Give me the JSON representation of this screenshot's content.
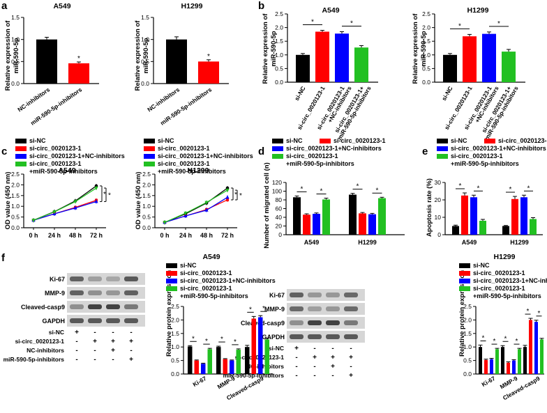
{
  "colors": {
    "black": "#000000",
    "red": "#ff0000",
    "blue": "#0000ff",
    "green": "#22c022",
    "band": "#3a3a3a",
    "bandbg": "#d6d6d6",
    "axis": "#000000"
  },
  "panels": {
    "a": {
      "letter": "a",
      "ylabel": [
        "Relative expression of",
        "miR-590-5p"
      ]
    },
    "b": {
      "letter": "b",
      "ylabel": [
        "Relative expression of",
        "miR-590-5p"
      ]
    },
    "c": {
      "letter": "c",
      "ylabel": "OD value (450 nm)",
      "legend": [
        "si-NC",
        "si-circ_0020123-1",
        "si-circ_0020123-1+NC-inhibitors",
        "si-circ_0020123-1",
        "+miR-590-5p-inhibitors"
      ]
    },
    "d": {
      "letter": "d",
      "ylabel": "Number of migrated cell (n)",
      "legend": [
        "si-NC",
        "si-circ_0020123-1",
        "si-circ_0020123-1+NC-inhibitors",
        "si-circ_0020123-1",
        "+miR-590-5p-inhibitors"
      ]
    },
    "e": {
      "letter": "e",
      "ylabel": "Apoptosis rate (%)",
      "legend": [
        "si-NC",
        "si-circ_0020123-1",
        "si-circ_0020123-1+NC-inhibitors",
        "si-circ_0020123-1",
        "+miR-590-5p-inhibitors"
      ]
    },
    "f": {
      "letter": "f",
      "ylabel": "Relative protein expression",
      "legend": [
        "si-NC",
        "si-circ_0020123-1",
        "si-circ_0020123-1+NC-inhibitors",
        "si-circ_0020123-1",
        "+miR-590-5p-inhibitors"
      ]
    }
  },
  "star": "*",
  "chart_data": [
    {
      "id": "a1",
      "type": "bar",
      "title": "A549",
      "categories": [
        "NC-inhibitors",
        "miR-590-5p-inhibitors"
      ],
      "values": [
        1.0,
        0.46
      ],
      "errors": [
        0.05,
        0.03
      ],
      "ylim": [
        0,
        1.5
      ],
      "yticks": [
        "0.0",
        "0.5",
        "1.0",
        "1.5"
      ],
      "ylabel": "Relative expression of miR-590-5p",
      "sig": [
        "*"
      ]
    },
    {
      "id": "a2",
      "type": "bar",
      "title": "H1299",
      "categories": [
        "NC-inhibitors",
        "miR-590-5p-inhibitors"
      ],
      "values": [
        1.0,
        0.5
      ],
      "errors": [
        0.06,
        0.04
      ],
      "ylim": [
        0,
        1.5
      ],
      "yticks": [
        "0.0",
        "0.5",
        "1.0",
        "1.5"
      ],
      "ylabel": "Relative expression of miR-590-5p",
      "sig": [
        "*"
      ]
    },
    {
      "id": "b1",
      "type": "bar",
      "title": "A549",
      "categories": [
        "si-NC",
        "si-circ_0020123-1",
        "si-circ_0020123-1 +NC-inhibitors",
        "si-circ_0020123-1+ miR-590-5p-inhibitors"
      ],
      "values": [
        1.0,
        1.85,
        1.78,
        1.27
      ],
      "errors": [
        0.05,
        0.05,
        0.07,
        0.07
      ],
      "ylim": [
        0,
        2.5
      ],
      "yticks": [
        "0.0",
        "0.5",
        "1.0",
        "1.5",
        "2.0",
        "2.5"
      ],
      "ylabel": "Relative expression of miR-590-5p",
      "sig": [
        "*",
        "*"
      ]
    },
    {
      "id": "b2",
      "type": "bar",
      "title": "H1299",
      "categories": [
        "si-NC",
        "si-circ_0020123-1",
        "si-circ_0020123-1 +NC-inhibitors",
        "si-circ_0020123-1+ miR-590-5p-inhibitors"
      ],
      "values": [
        1.0,
        1.68,
        1.77,
        1.12
      ],
      "errors": [
        0.05,
        0.07,
        0.07,
        0.08
      ],
      "ylim": [
        0,
        2.5
      ],
      "yticks": [
        "0.0",
        "0.5",
        "1.0",
        "1.5",
        "2.0",
        "2.5"
      ],
      "ylabel": "Relative expression of miR-590-5p",
      "sig": [
        "*",
        "*"
      ]
    },
    {
      "id": "c1",
      "type": "line",
      "title": "A549",
      "x": [
        "0 h",
        "24 h",
        "48 h",
        "72 h"
      ],
      "ylim": [
        0,
        2.5
      ],
      "yticks": [
        "0.0",
        "0.5",
        "1.0",
        "1.5",
        "2.0",
        "2.5"
      ],
      "ylabel": "OD value (450 nm)",
      "series": [
        {
          "name": "si-NC",
          "values": [
            0.35,
            0.75,
            1.25,
            1.95
          ]
        },
        {
          "name": "si-circ_0020123-1",
          "values": [
            0.35,
            0.65,
            0.95,
            1.28
          ]
        },
        {
          "name": "si-circ_0020123-1+NC-inhibitors",
          "values": [
            0.35,
            0.65,
            0.92,
            1.22
          ]
        },
        {
          "name": "si-circ_0020123-1+miR-590-5p-inhibitors",
          "values": [
            0.35,
            0.74,
            1.22,
            1.85
          ]
        }
      ],
      "sig": [
        "*",
        "*"
      ]
    },
    {
      "id": "c2",
      "type": "line",
      "title": "H1299",
      "x": [
        "0 h",
        "24 h",
        "48 h",
        "72 h"
      ],
      "ylim": [
        0,
        2.5
      ],
      "yticks": [
        "0.0",
        "0.5",
        "1.0",
        "1.5",
        "2.0",
        "2.5"
      ],
      "ylabel": "OD value (450 nm)",
      "series": [
        {
          "name": "si-NC",
          "values": [
            0.25,
            0.65,
            1.15,
            1.85
          ]
        },
        {
          "name": "si-circ_0020123-1",
          "values": [
            0.25,
            0.55,
            0.85,
            1.3
          ]
        },
        {
          "name": "si-circ_0020123-1+NC-inhibitors",
          "values": [
            0.25,
            0.55,
            0.82,
            1.42
          ]
        },
        {
          "name": "si-circ_0020123-1+miR-590-5p-inhibitors",
          "values": [
            0.25,
            0.68,
            1.18,
            1.75
          ]
        }
      ],
      "sig": [
        "*",
        "*"
      ]
    },
    {
      "id": "d",
      "type": "bar",
      "categories": [
        "A549",
        "H1299"
      ],
      "ylim": [
        0,
        120
      ],
      "yticks": [
        "0",
        "20",
        "40",
        "60",
        "80",
        "100",
        "120"
      ],
      "ylabel": "Number of migrated cell (n)",
      "series": [
        {
          "name": "si-NC",
          "values": [
            86,
            92
          ],
          "errors": [
            3,
            3
          ]
        },
        {
          "name": "si-circ_0020123-1",
          "values": [
            46,
            49
          ],
          "errors": [
            2,
            2
          ]
        },
        {
          "name": "si-circ_0020123-1+NC-inhibitors",
          "values": [
            48,
            47
          ],
          "errors": [
            2,
            2
          ]
        },
        {
          "name": "si-circ_0020123-1+miR-590-5p-inhibitors",
          "values": [
            81,
            84
          ],
          "errors": [
            3,
            2
          ]
        }
      ],
      "sig": [
        "*",
        "*",
        "*",
        "*"
      ]
    },
    {
      "id": "e",
      "type": "bar",
      "categories": [
        "A549",
        "H1299"
      ],
      "ylim": [
        0,
        30
      ],
      "yticks": [
        "0",
        "10",
        "20",
        "30"
      ],
      "ylabel": "Apoptosis rate (%)",
      "series": [
        {
          "name": "si-NC",
          "values": [
            5,
            5
          ],
          "errors": [
            0.5,
            0.3
          ]
        },
        {
          "name": "si-circ_0020123-1",
          "values": [
            22.5,
            20.5
          ],
          "errors": [
            1.5,
            1.5
          ]
        },
        {
          "name": "si-circ_0020123-1+NC-inhibitors",
          "values": [
            21.5,
            21.5
          ],
          "errors": [
            1.2,
            1.2
          ]
        },
        {
          "name": "si-circ_0020123-1+miR-590-5p-inhibitors",
          "values": [
            8,
            9
          ],
          "errors": [
            0.8,
            0.8
          ]
        }
      ],
      "sig": [
        "*",
        "*",
        "*",
        "*"
      ]
    },
    {
      "id": "f1",
      "type": "bar",
      "title": "A549",
      "categories": [
        "Ki-67",
        "MMP-9",
        "Cleaved-casp9"
      ],
      "ylim": [
        0,
        2.5
      ],
      "yticks": [
        "0.0",
        "0.5",
        "1.0",
        "1.5",
        "2.0",
        "2.5"
      ],
      "ylabel": "Relative protein expression",
      "series": [
        {
          "name": "si-NC",
          "values": [
            1.02,
            1.0,
            1.0
          ],
          "errors": [
            0.03,
            0.03,
            0.06
          ]
        },
        {
          "name": "si-circ_0020123-1",
          "values": [
            0.5,
            0.55,
            2.05
          ],
          "errors": [
            0.02,
            0.02,
            0.08
          ]
        },
        {
          "name": "si-circ_0020123-1+NC-inhibitors",
          "values": [
            0.38,
            0.5,
            2.1
          ],
          "errors": [
            0.02,
            0.02,
            0.06
          ]
        },
        {
          "name": "si-circ_0020123-1+miR-590-5p-inhibitors",
          "values": [
            0.92,
            0.9,
            1.28
          ],
          "errors": [
            0.03,
            0.03,
            0.04
          ]
        }
      ],
      "sig": [
        "*",
        "*",
        "*",
        "*",
        "*",
        "*"
      ]
    },
    {
      "id": "f2",
      "type": "bar",
      "title": "H1299",
      "categories": [
        "Ki-67",
        "MMP-9",
        "Cleaved-casp9"
      ],
      "ylim": [
        0,
        2.5
      ],
      "yticks": [
        "0.0",
        "0.5",
        "1.0",
        "1.5",
        "2.0",
        "2.5"
      ],
      "ylabel": "Relative protein expression",
      "series": [
        {
          "name": "si-NC",
          "values": [
            1.0,
            1.0,
            1.0
          ],
          "errors": [
            0.07,
            0.05,
            0.06
          ]
        },
        {
          "name": "si-circ_0020123-1",
          "values": [
            0.52,
            0.42,
            2.0
          ],
          "errors": [
            0.03,
            0.03,
            0.06
          ]
        },
        {
          "name": "si-circ_0020123-1+NC-inhibitors",
          "values": [
            0.55,
            0.5,
            1.93
          ],
          "errors": [
            0.03,
            0.03,
            0.06
          ]
        },
        {
          "name": "si-circ_0020123-1+miR-590-5p-inhibitors",
          "values": [
            0.92,
            0.92,
            1.28
          ],
          "errors": [
            0.03,
            0.03,
            0.04
          ]
        }
      ],
      "sig": [
        "*",
        "*",
        "*",
        "*",
        "*",
        "*"
      ]
    }
  ],
  "blots": [
    {
      "id": "blotA",
      "rows": [
        "Ki-67",
        "MMP-9",
        "Cleaved-casp9",
        "GAPDH"
      ],
      "intensity": [
        [
          0.75,
          0.35,
          0.3,
          0.8
        ],
        [
          0.75,
          0.45,
          0.4,
          0.75
        ],
        [
          0.45,
          0.95,
          0.95,
          0.6
        ],
        [
          0.8,
          0.8,
          0.8,
          0.8
        ]
      ],
      "conditions": [
        {
          "label": "si-NC",
          "marks": [
            "+",
            "-",
            "-",
            "-"
          ]
        },
        {
          "label": "si-circ_0020123-1",
          "marks": [
            "-",
            "+",
            "+",
            "+"
          ]
        },
        {
          "label": "NC-inhibitors",
          "marks": [
            "-",
            "-",
            "+",
            "-"
          ]
        },
        {
          "label": "miR-590-5p-inhibitors",
          "marks": [
            "-",
            "-",
            "-",
            "+"
          ]
        }
      ]
    },
    {
      "id": "blotB",
      "rows": [
        "Ki-67",
        "MMP-9",
        "Cleaved-casp9",
        "GAPDH"
      ],
      "intensity": [
        [
          0.75,
          0.4,
          0.4,
          0.7
        ],
        [
          0.7,
          0.35,
          0.4,
          0.7
        ],
        [
          0.45,
          0.95,
          0.95,
          0.6
        ],
        [
          0.8,
          0.8,
          0.8,
          0.8
        ]
      ],
      "conditions": [
        {
          "label": "si-NC",
          "marks": [
            "+",
            "-",
            "-",
            "-"
          ]
        },
        {
          "label": "si-circ_0020123-1",
          "marks": [
            "-",
            "+",
            "+",
            "+"
          ]
        },
        {
          "label": "NC-inhibitors",
          "marks": [
            "-",
            "-",
            "+",
            "-"
          ]
        },
        {
          "label": "miR-590-5p-inhibitors",
          "marks": [
            "-",
            "-",
            "-",
            "+"
          ]
        }
      ]
    }
  ]
}
